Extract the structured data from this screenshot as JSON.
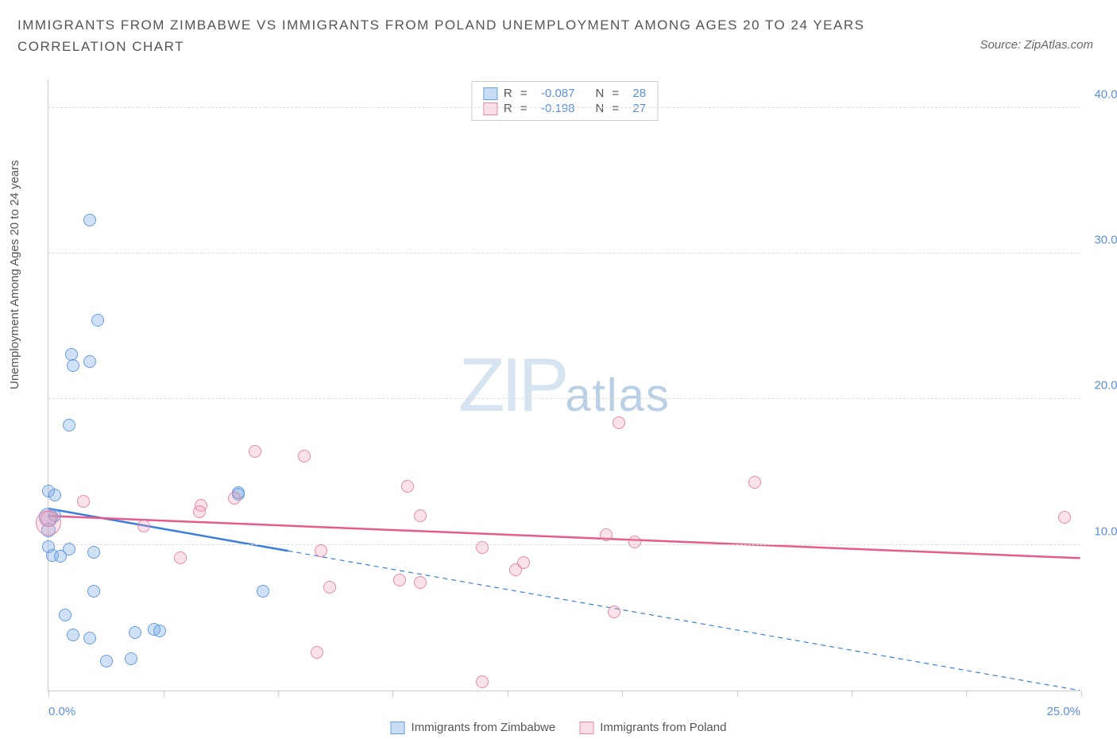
{
  "title": "IMMIGRANTS FROM ZIMBABWE VS IMMIGRANTS FROM POLAND UNEMPLOYMENT AMONG AGES 20 TO 24 YEARS CORRELATION CHART",
  "source": "Source: ZipAtlas.com",
  "ylabel": "Unemployment Among Ages 20 to 24 years",
  "watermark_zip": "ZIP",
  "watermark_atlas": "atlas",
  "chart": {
    "type": "scatter",
    "xlim": [
      0,
      25
    ],
    "ylim": [
      0,
      42
    ],
    "yticks": [
      10,
      20,
      30,
      40
    ],
    "ytick_labels": [
      "10.0%",
      "20.0%",
      "30.0%",
      "40.0%"
    ],
    "xticks": [
      0,
      2.78,
      5.56,
      8.33,
      11.11,
      13.89,
      16.67,
      19.44,
      22.22,
      25
    ],
    "xtick_label_low": "0.0%",
    "xtick_label_high": "25.0%",
    "background_color": "#ffffff",
    "grid_color": "#dddddd",
    "point_radius": 8,
    "series": [
      {
        "name": "Immigrants from Zimbabwe",
        "color_fill": "rgba(120,170,230,0.35)",
        "color_stroke": "#5a96dc",
        "css_class": "blue",
        "R": "-0.087",
        "N": "28",
        "trend": {
          "x1": 0,
          "y1": 12.5,
          "x2_solid": 5.8,
          "y2_solid": 9.6,
          "x2_dashed": 25,
          "y2_dashed": 0.0,
          "stroke": "#3a7edb",
          "width": 2.5
        },
        "points": [
          {
            "x": 0.0,
            "y": 11.9,
            "r": 12
          },
          {
            "x": 0.0,
            "y": 11.0,
            "r": 9
          },
          {
            "x": 0.15,
            "y": 12.0,
            "r": 8
          },
          {
            "x": 0.0,
            "y": 9.9,
            "r": 8
          },
          {
            "x": 0.1,
            "y": 9.3,
            "r": 8
          },
          {
            "x": 0.5,
            "y": 9.7,
            "r": 8
          },
          {
            "x": 0.28,
            "y": 9.2,
            "r": 8
          },
          {
            "x": 1.1,
            "y": 9.5,
            "r": 8
          },
          {
            "x": 0.0,
            "y": 13.7,
            "r": 8
          },
          {
            "x": 0.15,
            "y": 13.4,
            "r": 8
          },
          {
            "x": 0.5,
            "y": 18.2,
            "r": 8
          },
          {
            "x": 0.6,
            "y": 22.3,
            "r": 8
          },
          {
            "x": 0.55,
            "y": 23.1,
            "r": 8
          },
          {
            "x": 1.2,
            "y": 25.4,
            "r": 8
          },
          {
            "x": 1.0,
            "y": 22.6,
            "r": 8
          },
          {
            "x": 1.0,
            "y": 32.3,
            "r": 8
          },
          {
            "x": 0.4,
            "y": 5.2,
            "r": 8
          },
          {
            "x": 0.6,
            "y": 3.8,
            "r": 8
          },
          {
            "x": 1.0,
            "y": 3.6,
            "r": 8
          },
          {
            "x": 1.4,
            "y": 2.0,
            "r": 8
          },
          {
            "x": 2.0,
            "y": 2.2,
            "r": 8
          },
          {
            "x": 2.1,
            "y": 4.0,
            "r": 8
          },
          {
            "x": 2.55,
            "y": 4.2,
            "r": 8
          },
          {
            "x": 2.7,
            "y": 4.1,
            "r": 8
          },
          {
            "x": 1.1,
            "y": 6.8,
            "r": 8
          },
          {
            "x": 4.6,
            "y": 13.5,
            "r": 8
          },
          {
            "x": 4.6,
            "y": 13.6,
            "r": 8
          },
          {
            "x": 5.2,
            "y": 6.8,
            "r": 8
          }
        ]
      },
      {
        "name": "Immigrants from Poland",
        "color_fill": "rgba(240,160,190,0.30)",
        "color_stroke": "#e678a0",
        "css_class": "pink",
        "R": "-0.198",
        "N": "27",
        "trend": {
          "x1": 0,
          "y1": 12.0,
          "x2_solid": 25,
          "y2_solid": 9.1,
          "x2_dashed": 25,
          "y2_dashed": 9.1,
          "stroke": "#e85a8c",
          "width": 2.5
        },
        "points": [
          {
            "x": 0.0,
            "y": 11.5,
            "r": 16
          },
          {
            "x": 0.0,
            "y": 11.8,
            "r": 10
          },
          {
            "x": 0.85,
            "y": 13.0,
            "r": 8
          },
          {
            "x": 3.2,
            "y": 9.1,
            "r": 8
          },
          {
            "x": 3.7,
            "y": 12.7,
            "r": 8
          },
          {
            "x": 3.65,
            "y": 12.3,
            "r": 8
          },
          {
            "x": 4.5,
            "y": 13.2,
            "r": 8
          },
          {
            "x": 5.0,
            "y": 16.4,
            "r": 8
          },
          {
            "x": 6.2,
            "y": 16.1,
            "r": 8
          },
          {
            "x": 6.6,
            "y": 9.6,
            "r": 8
          },
          {
            "x": 6.8,
            "y": 7.1,
            "r": 8
          },
          {
            "x": 6.5,
            "y": 2.6,
            "r": 8
          },
          {
            "x": 8.5,
            "y": 7.6,
            "r": 8
          },
          {
            "x": 8.7,
            "y": 14.0,
            "r": 8
          },
          {
            "x": 9.0,
            "y": 7.4,
            "r": 8
          },
          {
            "x": 10.5,
            "y": 9.8,
            "r": 8
          },
          {
            "x": 10.5,
            "y": 0.6,
            "r": 8
          },
          {
            "x": 13.5,
            "y": 10.7,
            "r": 8
          },
          {
            "x": 13.8,
            "y": 18.4,
            "r": 8
          },
          {
            "x": 13.7,
            "y": 5.4,
            "r": 8
          },
          {
            "x": 17.1,
            "y": 14.3,
            "r": 8
          },
          {
            "x": 24.6,
            "y": 11.9,
            "r": 8
          },
          {
            "x": 2.3,
            "y": 11.3,
            "r": 8
          },
          {
            "x": 11.3,
            "y": 8.3,
            "r": 8
          },
          {
            "x": 11.5,
            "y": 8.8,
            "r": 8
          },
          {
            "x": 14.2,
            "y": 10.2,
            "r": 8
          },
          {
            "x": 9.0,
            "y": 12.0,
            "r": 8
          }
        ]
      }
    ]
  },
  "legend_labels": {
    "R": "R",
    "N": "N"
  }
}
